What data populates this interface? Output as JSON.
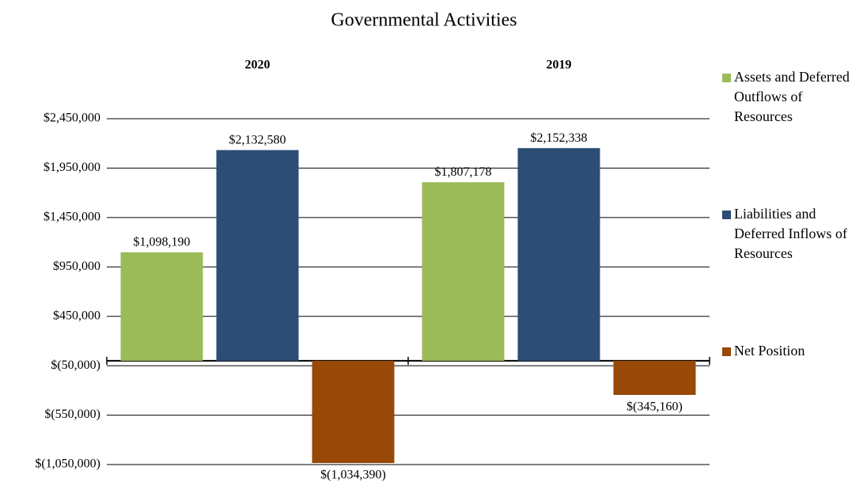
{
  "chart_data": {
    "type": "bar",
    "title": "Governmental Activities",
    "categories": [
      "2020",
      "2019"
    ],
    "series": [
      {
        "name": "Assets and Deferred Outflows of Resources",
        "color": "#9bbb59",
        "values": [
          1098190,
          1807178
        ],
        "value_labels": [
          "$1,098,190",
          "$1,807,178"
        ]
      },
      {
        "name": "Liabilities and Deferred Inflows of Resources",
        "color": "#2c4d75",
        "values": [
          2132580,
          2152338
        ],
        "value_labels": [
          "$2,132,580",
          "$2,152,338"
        ]
      },
      {
        "name": "Net Position",
        "color": "#984807",
        "values": [
          -1034390,
          -345160
        ],
        "value_labels": [
          "$(1,034,390)",
          "$(345,160)"
        ]
      }
    ],
    "ylim": [
      -1050000,
      2450000
    ],
    "yticks": [
      {
        "value": -1050000,
        "label": "$(1,050,000)"
      },
      {
        "value": -550000,
        "label": "$(550,000)"
      },
      {
        "value": -50000,
        "label": "$(50,000)"
      },
      {
        "value": 450000,
        "label": "$450,000"
      },
      {
        "value": 950000,
        "label": "$950,000"
      },
      {
        "value": 1450000,
        "label": "$1,450,000"
      },
      {
        "value": 1950000,
        "label": "$1,950,000"
      },
      {
        "value": 2450000,
        "label": "$2,450,000"
      }
    ],
    "grid": true,
    "legend": "right"
  }
}
